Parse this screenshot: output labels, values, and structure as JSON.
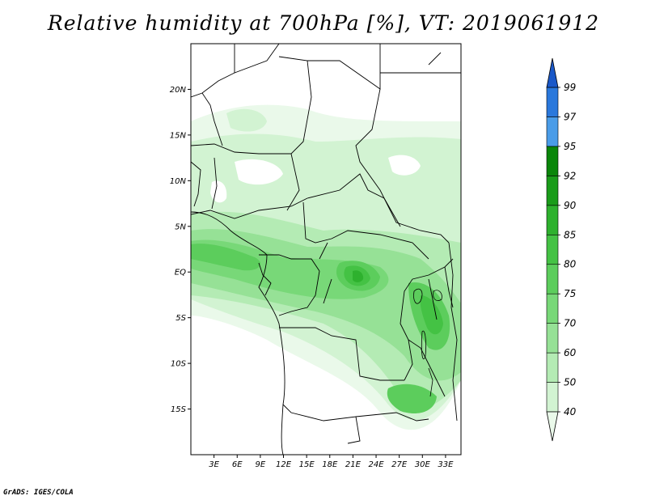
{
  "title": "Relative humidity at 700hPa [%], VT: 2019061912",
  "credit": "GrADS: IGES/COLA",
  "map": {
    "lon_range": [
      0,
      35
    ],
    "lat_range": [
      -20,
      25
    ],
    "lat_ticks": [
      {
        "value": 20,
        "label": "20N"
      },
      {
        "value": 15,
        "label": "15N"
      },
      {
        "value": 10,
        "label": "10N"
      },
      {
        "value": 5,
        "label": "5N"
      },
      {
        "value": 0,
        "label": "EQ"
      },
      {
        "value": -5,
        "label": "5S"
      },
      {
        "value": -10,
        "label": "10S"
      },
      {
        "value": -15,
        "label": "15S"
      }
    ],
    "lon_ticks": [
      {
        "value": 3,
        "label": "3E"
      },
      {
        "value": 6,
        "label": "6E"
      },
      {
        "value": 9,
        "label": "9E"
      },
      {
        "value": 12,
        "label": "12E"
      },
      {
        "value": 15,
        "label": "15E"
      },
      {
        "value": 18,
        "label": "18E"
      },
      {
        "value": 21,
        "label": "21E"
      },
      {
        "value": 24,
        "label": "24E"
      },
      {
        "value": 27,
        "label": "27E"
      },
      {
        "value": 30,
        "label": "30E"
      },
      {
        "value": 33,
        "label": "33E"
      }
    ]
  },
  "colorbar": {
    "levels": [
      "40",
      "50",
      "60",
      "70",
      "75",
      "80",
      "85",
      "90",
      "92",
      "95",
      "97",
      "99"
    ],
    "colors": [
      "#eaf9ea",
      "#d2f3d2",
      "#b4ebb4",
      "#96e196",
      "#78d878",
      "#5ccd5c",
      "#44c244",
      "#2eb12e",
      "#1a9c1a",
      "#0a860a",
      "#4a9ce8",
      "#2a78dc",
      "#1a58c8"
    ]
  }
}
